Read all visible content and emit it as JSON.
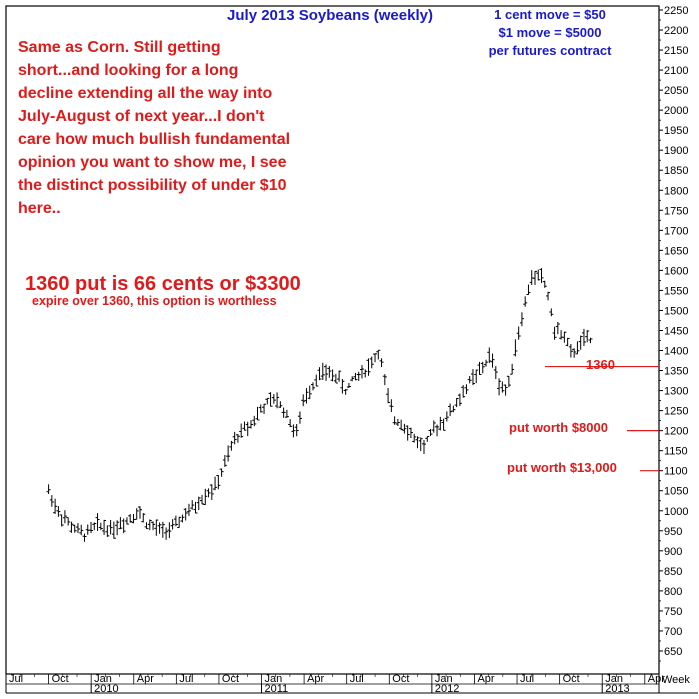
{
  "chart_data": {
    "type": "ohlc",
    "title": "July 2013 Soybeans (weekly)",
    "info_lines": [
      "1 cent move = $50",
      "$1 move = $5000",
      "per futures contract"
    ],
    "comment": "Same as Corn. Still getting short...and looking for a long decline extending all the way into July-August of next year...I don't care how much bullish fundamental opinion you want to show me, I see the distinct possibility of under $10 here..",
    "put_headline": "1360 put is 66 cents or $3300",
    "put_subline": "expire over 1360, this option is worthless",
    "levels": [
      {
        "value": 1360,
        "label": "1360"
      },
      {
        "value": 1200,
        "label": "put worth $8000"
      },
      {
        "value": 1100,
        "label": "put worth $13,000"
      }
    ],
    "y_axis_label": "Week",
    "ylim": [
      600,
      2250
    ],
    "y_ticks": [
      650,
      700,
      750,
      800,
      850,
      900,
      950,
      1000,
      1050,
      1100,
      1150,
      1200,
      1250,
      1300,
      1350,
      1400,
      1450,
      1500,
      1550,
      1600,
      1650,
      1700,
      1750,
      1800,
      1850,
      1900,
      1950,
      2000,
      2050,
      2100,
      2150,
      2200,
      2250
    ],
    "x_tick_labels": [
      "Jul",
      "Oct",
      "Jan",
      "Apr",
      "Jul",
      "Oct",
      "Jan",
      "Apr",
      "Jul",
      "Oct",
      "Jan",
      "Apr",
      "Jul",
      "Oct",
      "Jan",
      "Apr"
    ],
    "year_labels": [
      "2010",
      "2011",
      "2012",
      "2013"
    ],
    "x_range_months": [
      "2009-07",
      "2013-05"
    ],
    "anchors": [
      [
        "2009-10-01",
        1050
      ],
      [
        "2009-10-20",
        1000
      ],
      [
        "2009-11-20",
        960
      ],
      [
        "2009-12-15",
        940
      ],
      [
        "2010-01-15",
        965
      ],
      [
        "2010-02-15",
        955
      ],
      [
        "2010-03-15",
        975
      ],
      [
        "2010-04-10",
        1000
      ],
      [
        "2010-05-01",
        965
      ],
      [
        "2010-05-30",
        950
      ],
      [
        "2010-06-25",
        955
      ],
      [
        "2010-07-15",
        985
      ],
      [
        "2010-08-10",
        1010
      ],
      [
        "2010-09-01",
        1040
      ],
      [
        "2010-09-25",
        1060
      ],
      [
        "2010-10-15",
        1120
      ],
      [
        "2010-11-05",
        1180
      ],
      [
        "2010-11-20",
        1200
      ],
      [
        "2010-12-10",
        1220
      ],
      [
        "2011-01-05",
        1260
      ],
      [
        "2011-02-01",
        1280
      ],
      [
        "2011-02-20",
        1250
      ],
      [
        "2011-03-15",
        1190
      ],
      [
        "2011-04-01",
        1280
      ],
      [
        "2011-05-01",
        1340
      ],
      [
        "2011-05-20",
        1345
      ],
      [
        "2011-06-10",
        1335
      ],
      [
        "2011-06-30",
        1300
      ],
      [
        "2011-07-20",
        1335
      ],
      [
        "2011-08-15",
        1355
      ],
      [
        "2011-09-10",
        1400
      ],
      [
        "2011-09-25",
        1300
      ],
      [
        "2011-10-10",
        1230
      ],
      [
        "2011-10-30",
        1220
      ],
      [
        "2011-11-20",
        1185
      ],
      [
        "2011-12-15",
        1160
      ],
      [
        "2012-01-10",
        1210
      ],
      [
        "2012-01-30",
        1230
      ],
      [
        "2012-02-25",
        1270
      ],
      [
        "2012-03-20",
        1320
      ],
      [
        "2012-04-15",
        1350
      ],
      [
        "2012-05-05",
        1390
      ],
      [
        "2012-05-25",
        1310
      ],
      [
        "2012-06-10",
        1300
      ],
      [
        "2012-06-30",
        1420
      ],
      [
        "2012-07-15",
        1500
      ],
      [
        "2012-08-01",
        1580
      ],
      [
        "2012-08-20",
        1590
      ],
      [
        "2012-09-05",
        1550
      ],
      [
        "2012-09-20",
        1450
      ],
      [
        "2012-10-10",
        1440
      ],
      [
        "2012-10-25",
        1390
      ],
      [
        "2012-11-10",
        1410
      ],
      [
        "2012-11-25",
        1430
      ],
      [
        "2012-12-10",
        1420
      ]
    ]
  }
}
